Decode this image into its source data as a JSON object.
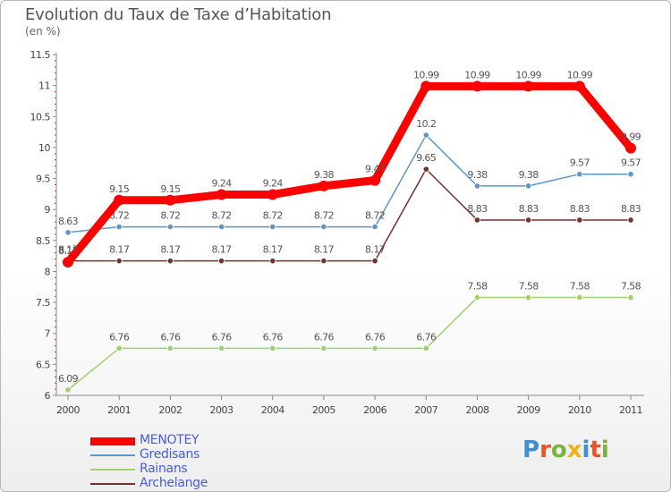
{
  "title": "Evolution du Taux de Taxe d’Habitation",
  "subtitle": "(en %)",
  "brand": {
    "text": "Proxiti",
    "letter_colors": [
      "#3a8fd6",
      "#e8532b",
      "#7ab33c",
      "#f2b21a",
      "#3a8fd6",
      "#e8532b",
      "#7ab33c"
    ]
  },
  "chart_data": {
    "type": "line",
    "title": "Evolution du Taux de Taxe d’Habitation",
    "ylabel": "(en %)",
    "xlabel": "",
    "x": [
      "2000",
      "2001",
      "2002",
      "2003",
      "2004",
      "2005",
      "2006",
      "2007",
      "2008",
      "2009",
      "2010",
      "2011"
    ],
    "ylim": [
      6,
      11.5
    ],
    "yticks": [
      "6",
      "6.5",
      "7",
      "7.5",
      "8",
      "8.5",
      "9",
      "9.5",
      "10",
      "10.5",
      "11",
      "11.5"
    ],
    "grid": false,
    "legend_position": "bottom-left",
    "series": [
      {
        "name": "Gredisans",
        "color": "#5b96c8",
        "values": [
          8.63,
          8.72,
          8.72,
          8.72,
          8.72,
          8.72,
          8.72,
          10.2,
          9.38,
          9.38,
          9.57,
          9.57
        ],
        "labels": [
          "8.63",
          "8.72",
          "8.72",
          "8.72",
          "8.72",
          "8.72",
          "8.72",
          "10.2",
          "9.38",
          "9.38",
          "9.57",
          "9.57"
        ]
      },
      {
        "name": "Rainans",
        "color": "#9ed26b",
        "values": [
          6.09,
          6.76,
          6.76,
          6.76,
          6.76,
          6.76,
          6.76,
          6.76,
          7.58,
          7.58,
          7.58,
          7.58
        ],
        "labels": [
          "6.09",
          "6.76",
          "6.76",
          "6.76",
          "6.76",
          "6.76",
          "6.76",
          "6.76",
          "7.58",
          "7.58",
          "7.58",
          "7.58"
        ]
      },
      {
        "name": "Archelange",
        "color": "#7a2f2f",
        "values": [
          8.17,
          8.17,
          8.17,
          8.17,
          8.17,
          8.17,
          8.17,
          9.65,
          8.83,
          8.83,
          8.83,
          8.83
        ],
        "labels": [
          "8.17",
          "8.17",
          "8.17",
          "8.17",
          "8.17",
          "8.17",
          "8.17",
          "9.65",
          "8.83",
          "8.83",
          "8.83",
          "8.83"
        ]
      },
      {
        "name": "MENOTEY",
        "color": "#ff0000",
        "values": [
          8.15,
          9.15,
          9.15,
          9.24,
          9.24,
          9.38,
          9.47,
          10.99,
          10.99,
          10.99,
          10.99,
          9.99
        ],
        "labels": [
          "8.15",
          "9.15",
          "9.15",
          "9.24",
          "9.24",
          "9.38",
          "9.47",
          "10.99",
          "10.99",
          "10.99",
          "10.99",
          "9.99"
        ]
      }
    ]
  }
}
